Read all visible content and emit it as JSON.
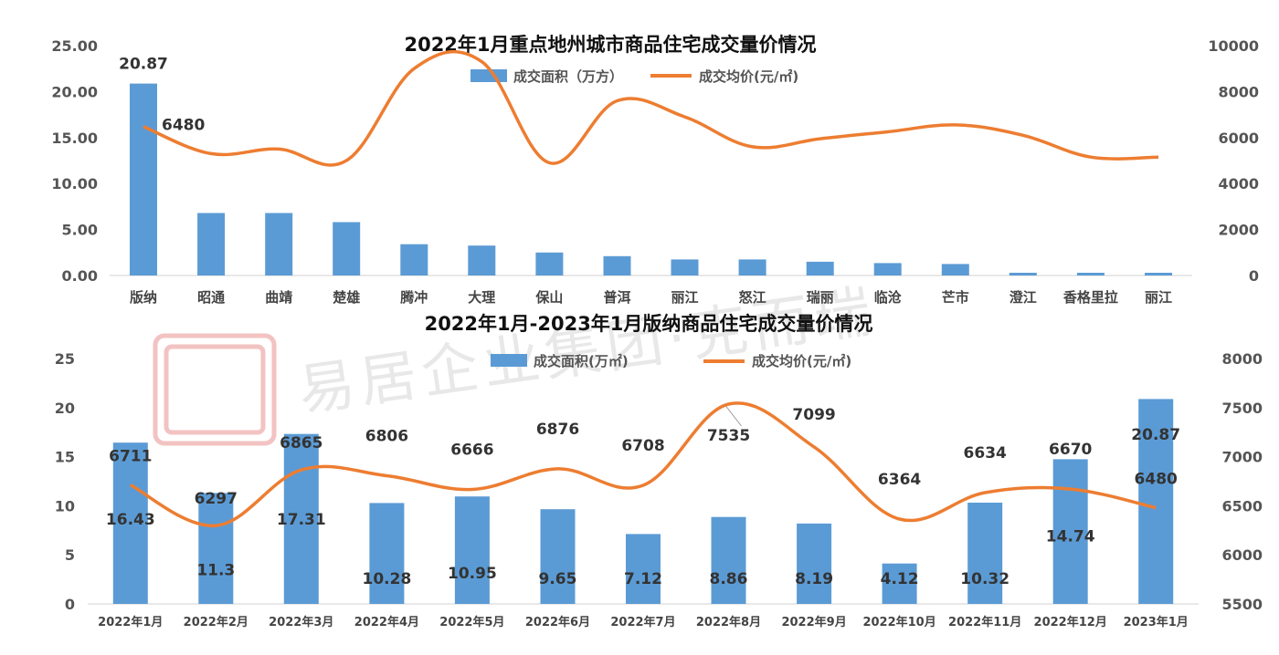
{
  "watermark": {
    "text": "易居企业集团·克而瑞"
  },
  "chart_data": [
    {
      "type": "bar",
      "title": "2022年1月重点地州城市商品住宅成交量价情况",
      "categories": [
        "版纳",
        "昭通",
        "曲靖",
        "楚雄",
        "腾冲",
        "大理",
        "保山",
        "普洱",
        "丽江",
        "怒江",
        "瑞丽",
        "临沧",
        "芒市",
        "澄江",
        "香格里拉",
        "丽江"
      ],
      "series": [
        {
          "name": "成交面积（万方）",
          "kind": "bar",
          "axis": "left",
          "values": [
            20.87,
            6.8,
            6.8,
            5.8,
            3.4,
            3.25,
            2.5,
            2.1,
            1.75,
            1.75,
            1.5,
            1.35,
            1.25,
            0.3,
            0.3,
            0.3
          ]
        },
        {
          "name": "成交均价(元/㎡)",
          "kind": "line",
          "axis": "right",
          "values": [
            6480,
            5300,
            5500,
            5000,
            9000,
            9300,
            4900,
            7600,
            6900,
            5600,
            5950,
            6250,
            6550,
            6100,
            5150,
            5150
          ]
        }
      ],
      "ylim_left": [
        0,
        25
      ],
      "yticks_left": [
        "0.00",
        "5.00",
        "10.00",
        "15.00",
        "20.00",
        "25.00"
      ],
      "ylim_right": [
        0,
        10000
      ],
      "yticks_right": [
        "0",
        "2000",
        "4000",
        "6000",
        "8000",
        "10000"
      ],
      "data_labels": [
        {
          "index": 0,
          "series": 0,
          "text": "20.87"
        },
        {
          "index": 0,
          "series": 1,
          "text": "6480"
        }
      ],
      "legend_position": "top"
    },
    {
      "type": "bar",
      "title": "2022年1月-2023年1月版纳商品住宅成交量价情况",
      "categories": [
        "2022年1月",
        "2022年2月",
        "2022年3月",
        "2022年4月",
        "2022年5月",
        "2022年6月",
        "2022年7月",
        "2022年8月",
        "2022年9月",
        "2022年10月",
        "2022年11月",
        "2022年12月",
        "2023年1月"
      ],
      "series": [
        {
          "name": "成交面积(万㎡)",
          "kind": "bar",
          "axis": "left",
          "values": [
            16.43,
            11.3,
            17.31,
            10.28,
            10.95,
            9.65,
            7.12,
            8.86,
            8.19,
            4.12,
            10.32,
            14.74,
            20.87
          ],
          "labels": [
            "16.43",
            "11.3",
            "17.31",
            "10.28",
            "10.95",
            "9.65",
            "7.12",
            "8.86",
            "8.19",
            "4.12",
            "10.32",
            "14.74",
            "20.87"
          ]
        },
        {
          "name": "成交均价(元/㎡)",
          "kind": "line",
          "axis": "right",
          "values": [
            6711,
            6297,
            6865,
            6806,
            6666,
            6876,
            6708,
            7535,
            7099,
            6364,
            6634,
            6670,
            6480
          ],
          "labels": [
            "6711",
            "6297",
            "6865",
            "6806",
            "6666",
            "6876",
            "6708",
            "7535",
            "7099",
            "6364",
            "6634",
            "6670",
            "6480"
          ]
        }
      ],
      "ylim_left": [
        0,
        25
      ],
      "yticks_left": [
        "0",
        "5",
        "10",
        "15",
        "20",
        "25"
      ],
      "ylim_right": [
        5500,
        8000
      ],
      "yticks_right": [
        "5500",
        "6000",
        "6500",
        "7000",
        "7500",
        "8000"
      ],
      "legend_position": "top"
    }
  ]
}
